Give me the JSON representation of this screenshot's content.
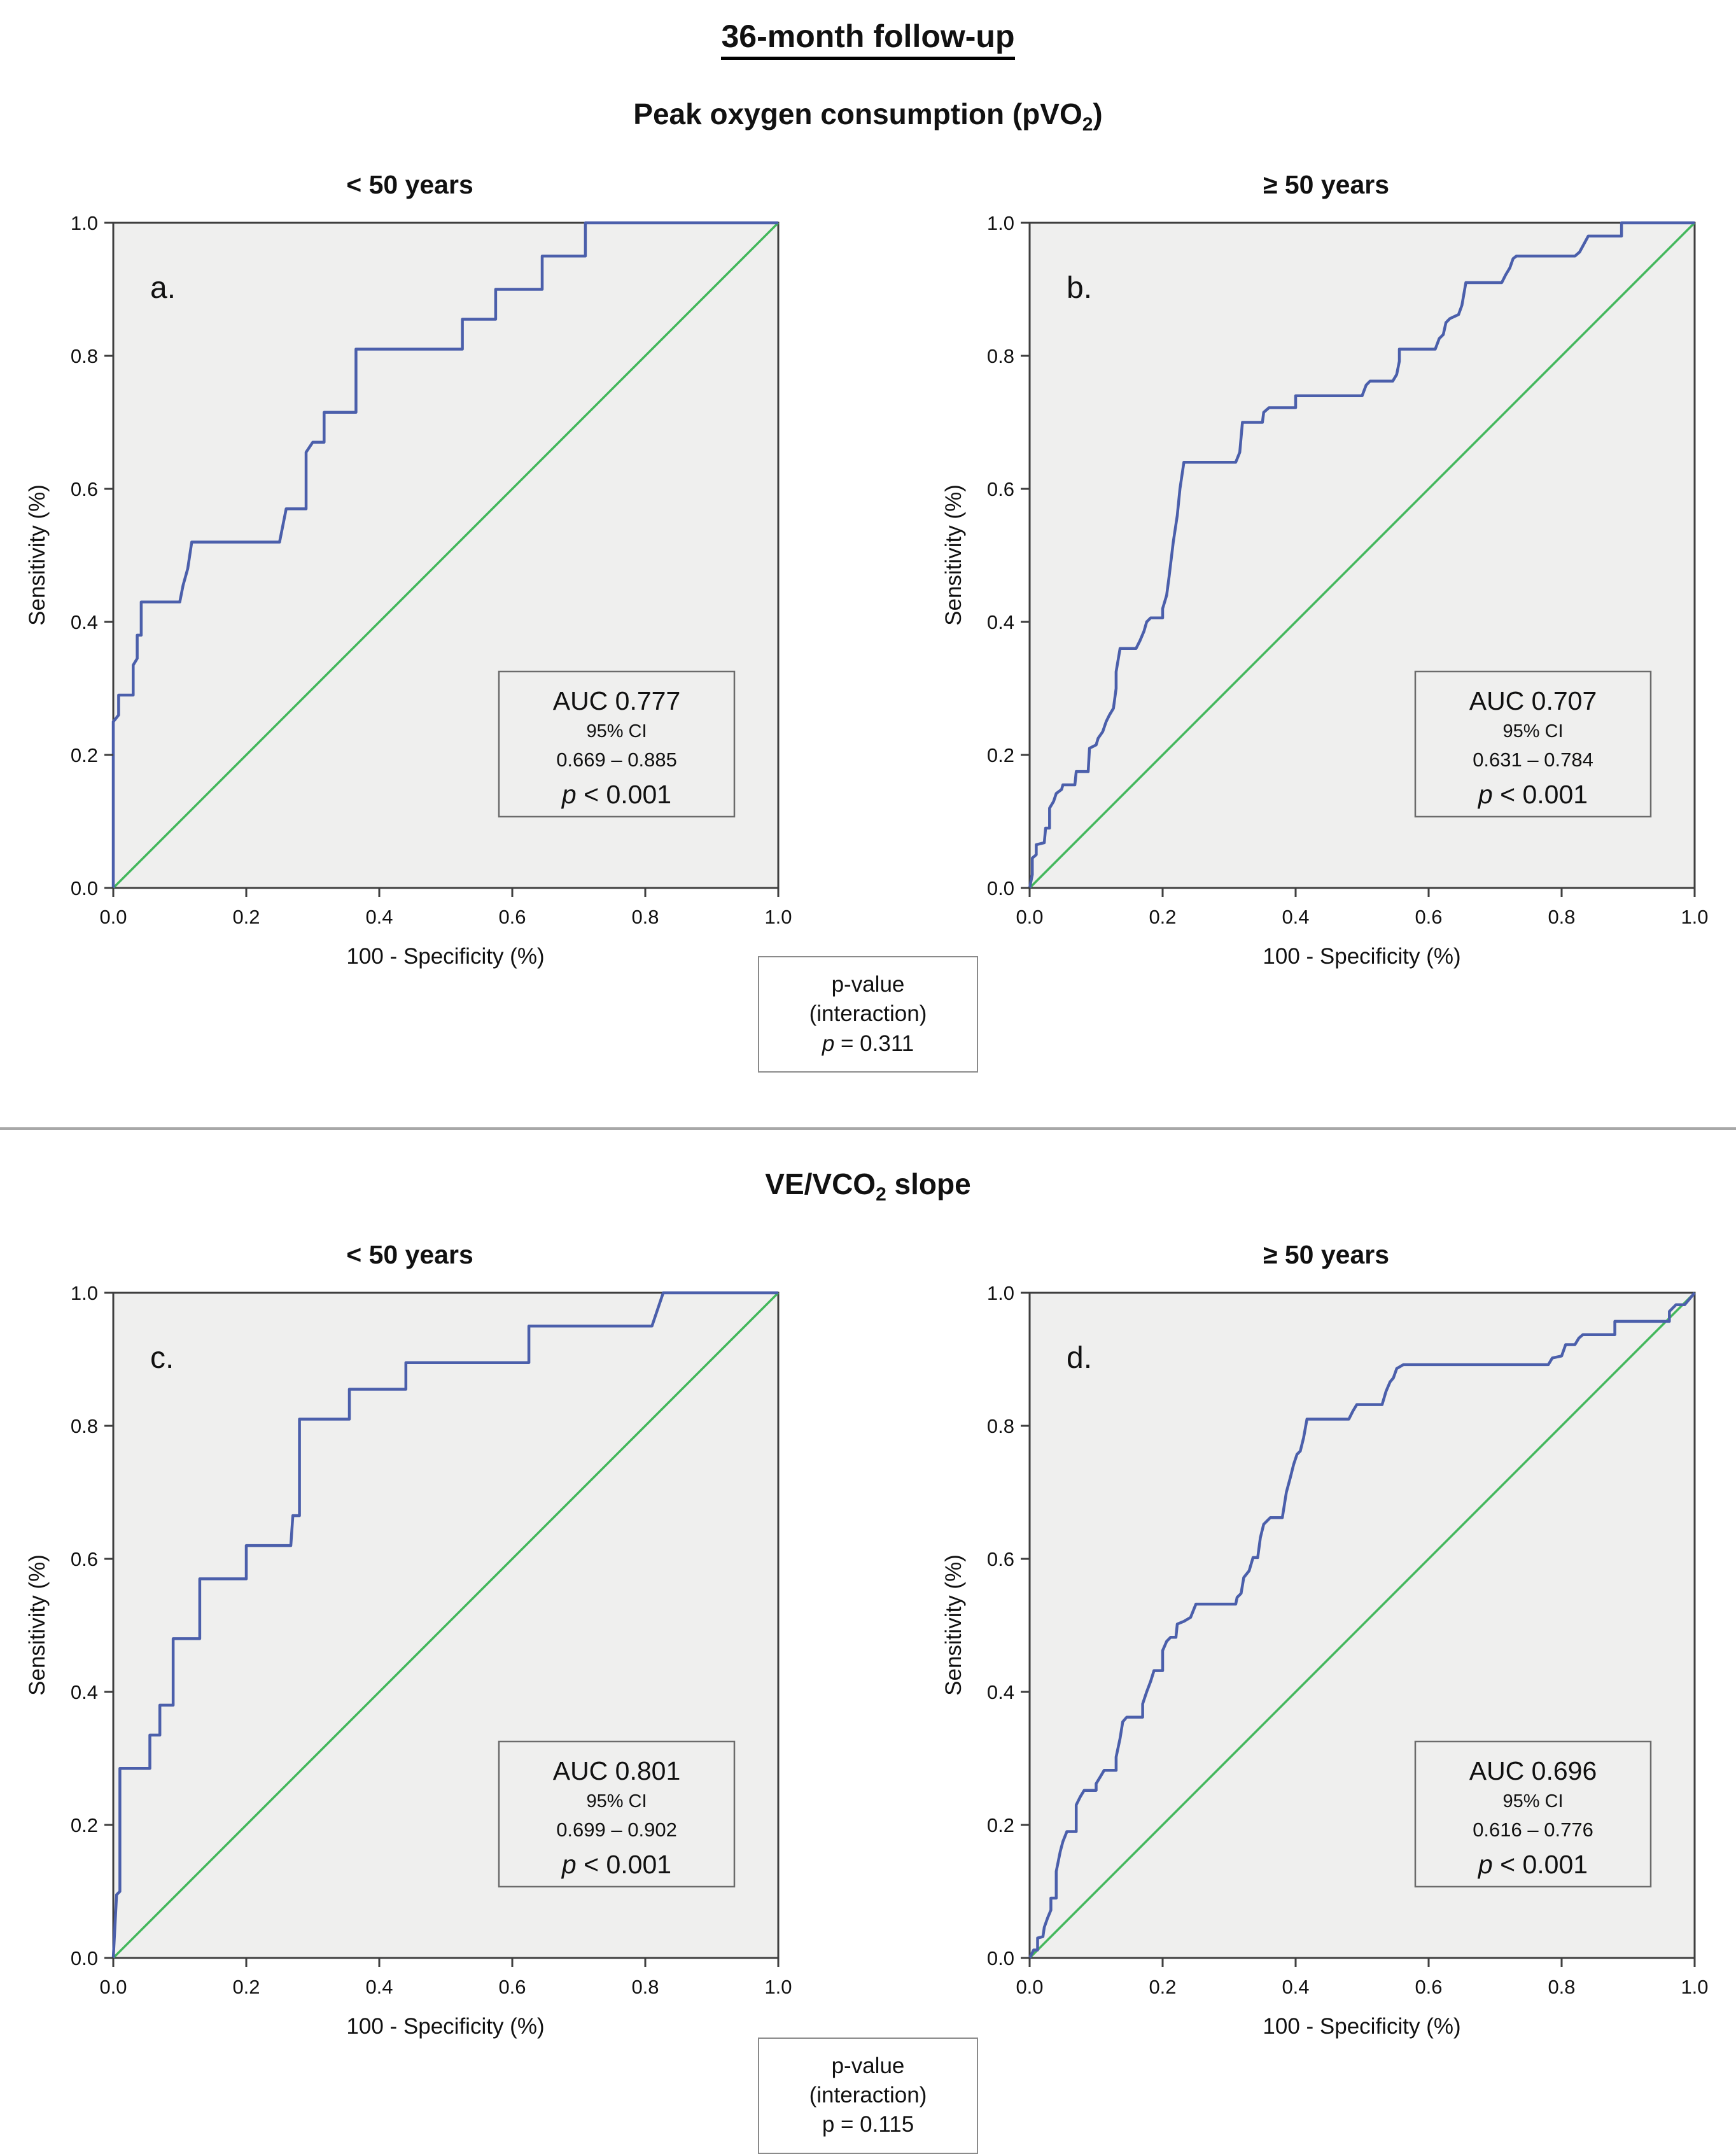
{
  "figure": {
    "main_title": "36-month follow-up"
  },
  "sections": [
    {
      "subtitle_pre": "Peak oxygen consumption (pVO",
      "subtitle_sub": "2",
      "subtitle_post": ")",
      "interaction": {
        "line1": "p-value",
        "line2": "(interaction)",
        "p_lead": "p",
        "p_rest": " = 0.311"
      }
    },
    {
      "subtitle_pre": "VE/VCO",
      "subtitle_sub": "2",
      "subtitle_post": " slope",
      "interaction": {
        "line1": "p-value",
        "line2": "(interaction)",
        "p_lead": "",
        "p_rest": "p = 0.115"
      }
    }
  ],
  "chart_data": [
    {
      "type": "line",
      "panel_letter": "a.",
      "title": "< 50 years",
      "xlabel": "100 - Specificity (%)",
      "ylabel": "Sensitivity (%)",
      "xlim": [
        0,
        1
      ],
      "ylim": [
        0,
        1
      ],
      "tick_labels": [
        "0.0",
        "0.2",
        "0.4",
        "0.6",
        "0.8",
        "1.0"
      ],
      "grid": false,
      "legend": "none",
      "auc": {
        "title": "AUC 0.777",
        "ci_label": "95% CI",
        "ci_range": "0.669 – 0.885",
        "p_lead": "p",
        "p_rest": " < 0.001"
      },
      "colors": {
        "roc": "#4b5fab",
        "diagonal": "#43b75c",
        "plot_bg": "#efefee",
        "border": "#3f3f3f"
      },
      "diagonal": [
        [
          0,
          0
        ],
        [
          1,
          1
        ]
      ],
      "roc_points": [
        [
          0,
          0
        ],
        [
          0,
          0.25
        ],
        [
          0.008,
          0.26
        ],
        [
          0.008,
          0.29
        ],
        [
          0.03,
          0.29
        ],
        [
          0.03,
          0.335
        ],
        [
          0.036,
          0.345
        ],
        [
          0.036,
          0.38
        ],
        [
          0.042,
          0.38
        ],
        [
          0.042,
          0.43
        ],
        [
          0.1,
          0.43
        ],
        [
          0.105,
          0.455
        ],
        [
          0.112,
          0.48
        ],
        [
          0.118,
          0.52
        ],
        [
          0.25,
          0.52
        ],
        [
          0.255,
          0.545
        ],
        [
          0.26,
          0.57
        ],
        [
          0.29,
          0.57
        ],
        [
          0.29,
          0.655
        ],
        [
          0.3,
          0.67
        ],
        [
          0.317,
          0.67
        ],
        [
          0.317,
          0.715
        ],
        [
          0.365,
          0.715
        ],
        [
          0.365,
          0.81
        ],
        [
          0.525,
          0.81
        ],
        [
          0.525,
          0.855
        ],
        [
          0.575,
          0.855
        ],
        [
          0.575,
          0.9
        ],
        [
          0.645,
          0.9
        ],
        [
          0.645,
          0.95
        ],
        [
          0.71,
          0.95
        ],
        [
          0.71,
          1
        ],
        [
          1,
          1
        ]
      ]
    },
    {
      "type": "line",
      "panel_letter": "b.",
      "title": "≥ 50 years",
      "xlabel": "100 - Specificity (%)",
      "ylabel": "Sensitivity (%)",
      "xlim": [
        0,
        1
      ],
      "ylim": [
        0,
        1
      ],
      "tick_labels": [
        "0.0",
        "0.2",
        "0.4",
        "0.6",
        "0.8",
        "1.0"
      ],
      "grid": false,
      "legend": "none",
      "auc": {
        "title": "AUC 0.707",
        "ci_label": "95% CI",
        "ci_range": "0.631 – 0.784",
        "p_lead": "p",
        "p_rest": " < 0.001"
      },
      "colors": {
        "roc": "#4b5fab",
        "diagonal": "#43b75c",
        "plot_bg": "#efefee",
        "border": "#3f3f3f"
      },
      "diagonal": [
        [
          0,
          0
        ],
        [
          1,
          1
        ]
      ],
      "roc_points": [
        [
          0,
          0
        ],
        [
          0.004,
          0.02
        ],
        [
          0.004,
          0.045
        ],
        [
          0.01,
          0.05
        ],
        [
          0.01,
          0.065
        ],
        [
          0.022,
          0.068
        ],
        [
          0.024,
          0.09
        ],
        [
          0.03,
          0.09
        ],
        [
          0.03,
          0.12
        ],
        [
          0.036,
          0.13
        ],
        [
          0.04,
          0.142
        ],
        [
          0.048,
          0.148
        ],
        [
          0.05,
          0.155
        ],
        [
          0.068,
          0.155
        ],
        [
          0.07,
          0.175
        ],
        [
          0.088,
          0.175
        ],
        [
          0.09,
          0.21
        ],
        [
          0.1,
          0.215
        ],
        [
          0.103,
          0.225
        ],
        [
          0.11,
          0.235
        ],
        [
          0.115,
          0.25
        ],
        [
          0.12,
          0.26
        ],
        [
          0.126,
          0.27
        ],
        [
          0.13,
          0.3
        ],
        [
          0.13,
          0.325
        ],
        [
          0.136,
          0.36
        ],
        [
          0.16,
          0.36
        ],
        [
          0.166,
          0.372
        ],
        [
          0.172,
          0.386
        ],
        [
          0.176,
          0.4
        ],
        [
          0.182,
          0.406
        ],
        [
          0.2,
          0.406
        ],
        [
          0.2,
          0.42
        ],
        [
          0.206,
          0.44
        ],
        [
          0.21,
          0.47
        ],
        [
          0.216,
          0.52
        ],
        [
          0.222,
          0.56
        ],
        [
          0.226,
          0.6
        ],
        [
          0.232,
          0.64
        ],
        [
          0.31,
          0.64
        ],
        [
          0.316,
          0.655
        ],
        [
          0.32,
          0.7
        ],
        [
          0.35,
          0.7
        ],
        [
          0.352,
          0.715
        ],
        [
          0.36,
          0.722
        ],
        [
          0.4,
          0.722
        ],
        [
          0.4,
          0.74
        ],
        [
          0.5,
          0.74
        ],
        [
          0.506,
          0.756
        ],
        [
          0.512,
          0.762
        ],
        [
          0.546,
          0.762
        ],
        [
          0.552,
          0.772
        ],
        [
          0.556,
          0.792
        ],
        [
          0.556,
          0.81
        ],
        [
          0.61,
          0.81
        ],
        [
          0.616,
          0.826
        ],
        [
          0.622,
          0.832
        ],
        [
          0.626,
          0.85
        ],
        [
          0.632,
          0.856
        ],
        [
          0.645,
          0.862
        ],
        [
          0.65,
          0.876
        ],
        [
          0.656,
          0.91
        ],
        [
          0.71,
          0.91
        ],
        [
          0.716,
          0.922
        ],
        [
          0.722,
          0.932
        ],
        [
          0.727,
          0.946
        ],
        [
          0.732,
          0.95
        ],
        [
          0.82,
          0.95
        ],
        [
          0.827,
          0.956
        ],
        [
          0.84,
          0.98
        ],
        [
          0.89,
          0.98
        ],
        [
          0.89,
          1
        ],
        [
          1,
          1
        ]
      ]
    },
    {
      "type": "line",
      "panel_letter": "c.",
      "title": "< 50 years",
      "xlabel": "100 - Specificity (%)",
      "ylabel": "Sensitivity (%)",
      "xlim": [
        0,
        1
      ],
      "ylim": [
        0,
        1
      ],
      "tick_labels": [
        "0.0",
        "0.2",
        "0.4",
        "0.6",
        "0.8",
        "1.0"
      ],
      "grid": false,
      "legend": "none",
      "auc": {
        "title": "AUC 0.801",
        "ci_label": "95% CI",
        "ci_range": "0.699 – 0.902",
        "p_lead": "p",
        "p_rest": " < 0.001"
      },
      "colors": {
        "roc": "#4b5fab",
        "diagonal": "#43b75c",
        "plot_bg": "#efefee",
        "border": "#3f3f3f"
      },
      "diagonal": [
        [
          0,
          0
        ],
        [
          1,
          1
        ]
      ],
      "roc_points": [
        [
          0,
          0
        ],
        [
          0.005,
          0.095
        ],
        [
          0.01,
          0.1
        ],
        [
          0.01,
          0.285
        ],
        [
          0.055,
          0.285
        ],
        [
          0.055,
          0.335
        ],
        [
          0.07,
          0.335
        ],
        [
          0.07,
          0.38
        ],
        [
          0.09,
          0.38
        ],
        [
          0.09,
          0.48
        ],
        [
          0.13,
          0.48
        ],
        [
          0.13,
          0.57
        ],
        [
          0.2,
          0.57
        ],
        [
          0.2,
          0.62
        ],
        [
          0.267,
          0.62
        ],
        [
          0.27,
          0.665
        ],
        [
          0.28,
          0.665
        ],
        [
          0.28,
          0.81
        ],
        [
          0.355,
          0.81
        ],
        [
          0.355,
          0.855
        ],
        [
          0.44,
          0.855
        ],
        [
          0.44,
          0.895
        ],
        [
          0.625,
          0.895
        ],
        [
          0.625,
          0.95
        ],
        [
          0.81,
          0.95
        ],
        [
          0.827,
          1
        ],
        [
          1,
          1
        ]
      ]
    },
    {
      "type": "line",
      "panel_letter": "d.",
      "title": "≥ 50 years",
      "xlabel": "100 - Specificity (%)",
      "ylabel": "Sensitivity (%)",
      "xlim": [
        0,
        1
      ],
      "ylim": [
        0,
        1
      ],
      "tick_labels": [
        "0.0",
        "0.2",
        "0.4",
        "0.6",
        "0.8",
        "1.0"
      ],
      "grid": false,
      "legend": "none",
      "auc": {
        "title": "AUC 0.696",
        "ci_label": "95% CI",
        "ci_range": "0.616 – 0.776",
        "p_lead": "p",
        "p_rest": " < 0.001"
      },
      "colors": {
        "roc": "#4b5fab",
        "diagonal": "#43b75c",
        "plot_bg": "#efefee",
        "border": "#3f3f3f"
      },
      "diagonal": [
        [
          0,
          0
        ],
        [
          1,
          1
        ]
      ],
      "roc_points": [
        [
          0,
          0
        ],
        [
          0.006,
          0.012
        ],
        [
          0.012,
          0.012
        ],
        [
          0.012,
          0.03
        ],
        [
          0.02,
          0.032
        ],
        [
          0.022,
          0.046
        ],
        [
          0.027,
          0.06
        ],
        [
          0.032,
          0.072
        ],
        [
          0.032,
          0.09
        ],
        [
          0.04,
          0.09
        ],
        [
          0.04,
          0.13
        ],
        [
          0.046,
          0.16
        ],
        [
          0.05,
          0.175
        ],
        [
          0.056,
          0.19
        ],
        [
          0.07,
          0.19
        ],
        [
          0.07,
          0.23
        ],
        [
          0.076,
          0.242
        ],
        [
          0.082,
          0.252
        ],
        [
          0.1,
          0.252
        ],
        [
          0.1,
          0.262
        ],
        [
          0.106,
          0.272
        ],
        [
          0.112,
          0.282
        ],
        [
          0.13,
          0.282
        ],
        [
          0.13,
          0.302
        ],
        [
          0.136,
          0.33
        ],
        [
          0.14,
          0.355
        ],
        [
          0.146,
          0.362
        ],
        [
          0.17,
          0.362
        ],
        [
          0.17,
          0.382
        ],
        [
          0.176,
          0.4
        ],
        [
          0.182,
          0.416
        ],
        [
          0.187,
          0.432
        ],
        [
          0.2,
          0.432
        ],
        [
          0.2,
          0.462
        ],
        [
          0.206,
          0.476
        ],
        [
          0.212,
          0.482
        ],
        [
          0.22,
          0.482
        ],
        [
          0.222,
          0.502
        ],
        [
          0.232,
          0.506
        ],
        [
          0.242,
          0.512
        ],
        [
          0.25,
          0.532
        ],
        [
          0.31,
          0.532
        ],
        [
          0.312,
          0.542
        ],
        [
          0.318,
          0.548
        ],
        [
          0.322,
          0.572
        ],
        [
          0.33,
          0.582
        ],
        [
          0.336,
          0.602
        ],
        [
          0.343,
          0.602
        ],
        [
          0.347,
          0.632
        ],
        [
          0.352,
          0.652
        ],
        [
          0.357,
          0.657
        ],
        [
          0.362,
          0.662
        ],
        [
          0.38,
          0.662
        ],
        [
          0.386,
          0.7
        ],
        [
          0.392,
          0.722
        ],
        [
          0.397,
          0.742
        ],
        [
          0.402,
          0.757
        ],
        [
          0.407,
          0.762
        ],
        [
          0.412,
          0.782
        ],
        [
          0.417,
          0.81
        ],
        [
          0.48,
          0.81
        ],
        [
          0.486,
          0.822
        ],
        [
          0.492,
          0.832
        ],
        [
          0.53,
          0.832
        ],
        [
          0.536,
          0.852
        ],
        [
          0.542,
          0.866
        ],
        [
          0.547,
          0.872
        ],
        [
          0.552,
          0.886
        ],
        [
          0.562,
          0.892
        ],
        [
          0.78,
          0.892
        ],
        [
          0.786,
          0.902
        ],
        [
          0.8,
          0.905
        ],
        [
          0.806,
          0.922
        ],
        [
          0.82,
          0.922
        ],
        [
          0.826,
          0.932
        ],
        [
          0.832,
          0.937
        ],
        [
          0.88,
          0.937
        ],
        [
          0.88,
          0.957
        ],
        [
          0.962,
          0.957
        ],
        [
          0.962,
          0.972
        ],
        [
          0.972,
          0.982
        ],
        [
          0.985,
          0.982
        ],
        [
          1,
          1
        ]
      ]
    }
  ]
}
